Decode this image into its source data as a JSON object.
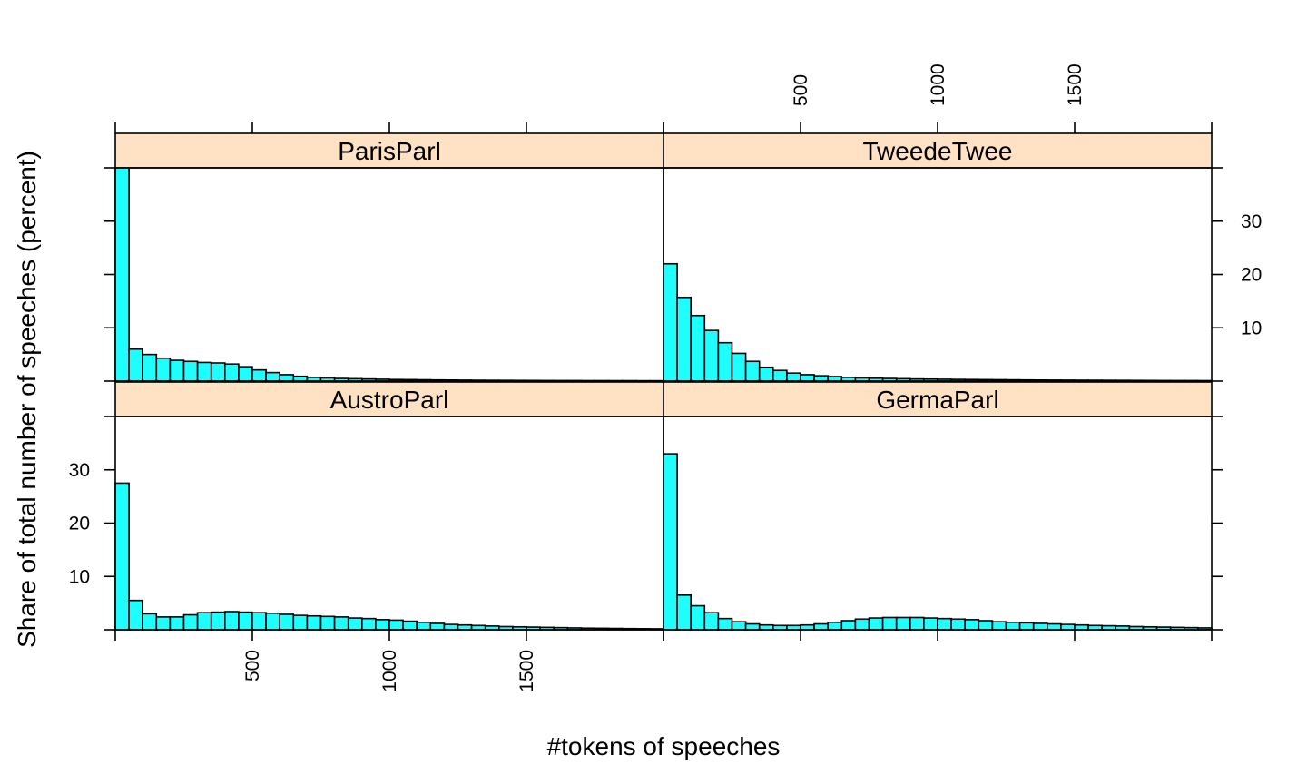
{
  "colors": {
    "bar_fill": "#1ffefe",
    "bar_stroke": "#000000",
    "strip_fill": "#ffe2c4",
    "frame": "#000000",
    "background": "#ffffff"
  },
  "chart_data": {
    "type": "bar",
    "subtype": "histogram-lattice",
    "xlabel": "#tokens of speeches",
    "ylabel": "Share of total number of speeches (percent)",
    "xlim": [
      0,
      2000
    ],
    "ylim": [
      0,
      40
    ],
    "bin_width": 50,
    "x_ticks": [
      500,
      1000,
      1500
    ],
    "x_tick_labels": [
      "500",
      "1000",
      "1500"
    ],
    "y_ticks": [
      10,
      20,
      30
    ],
    "y_tick_labels": [
      "10",
      "20",
      "30"
    ],
    "layout": {
      "rows": 2,
      "cols": 2
    },
    "grid": false,
    "legend": "none",
    "panels": [
      {
        "name": "ParisParl",
        "row": 0,
        "col": 0,
        "values": [
          40.0,
          6.0,
          5.0,
          4.3,
          3.9,
          3.7,
          3.5,
          3.4,
          3.2,
          2.7,
          2.1,
          1.6,
          1.2,
          0.9,
          0.7,
          0.6,
          0.5,
          0.45,
          0.4,
          0.35,
          0.3,
          0.28,
          0.25,
          0.22,
          0.2,
          0.18,
          0.16,
          0.15,
          0.14,
          0.13,
          0.12,
          0.11,
          0.1,
          0.1,
          0.09,
          0.09,
          0.08,
          0.08,
          0.07,
          0.07
        ]
      },
      {
        "name": "TweedeTwee",
        "row": 0,
        "col": 1,
        "values": [
          22.0,
          15.7,
          12.3,
          9.5,
          7.2,
          5.2,
          3.7,
          2.6,
          2.0,
          1.5,
          1.2,
          1.0,
          0.85,
          0.7,
          0.6,
          0.55,
          0.5,
          0.45,
          0.4,
          0.38,
          0.35,
          0.32,
          0.3,
          0.28,
          0.26,
          0.24,
          0.22,
          0.2,
          0.19,
          0.18,
          0.17,
          0.16,
          0.15,
          0.14,
          0.13,
          0.12,
          0.11,
          0.1,
          0.1,
          0.09
        ]
      },
      {
        "name": "AustroParl",
        "row": 1,
        "col": 0,
        "values": [
          27.5,
          5.5,
          3.0,
          2.4,
          2.4,
          2.8,
          3.2,
          3.3,
          3.4,
          3.3,
          3.2,
          3.1,
          2.9,
          2.7,
          2.6,
          2.5,
          2.4,
          2.2,
          2.1,
          1.9,
          1.8,
          1.6,
          1.4,
          1.2,
          1.0,
          0.9,
          0.8,
          0.7,
          0.6,
          0.55,
          0.5,
          0.45,
          0.4,
          0.35,
          0.3,
          0.28,
          0.25,
          0.22,
          0.2,
          0.18
        ]
      },
      {
        "name": "GermaParl",
        "row": 1,
        "col": 1,
        "values": [
          33.0,
          6.5,
          4.5,
          3.2,
          2.1,
          1.5,
          1.1,
          0.9,
          0.8,
          0.8,
          0.9,
          1.1,
          1.4,
          1.7,
          2.0,
          2.2,
          2.3,
          2.3,
          2.3,
          2.2,
          2.1,
          2.0,
          1.9,
          1.7,
          1.5,
          1.4,
          1.3,
          1.2,
          1.1,
          1.0,
          0.9,
          0.8,
          0.75,
          0.7,
          0.6,
          0.55,
          0.5,
          0.45,
          0.4,
          0.35
        ]
      }
    ]
  }
}
